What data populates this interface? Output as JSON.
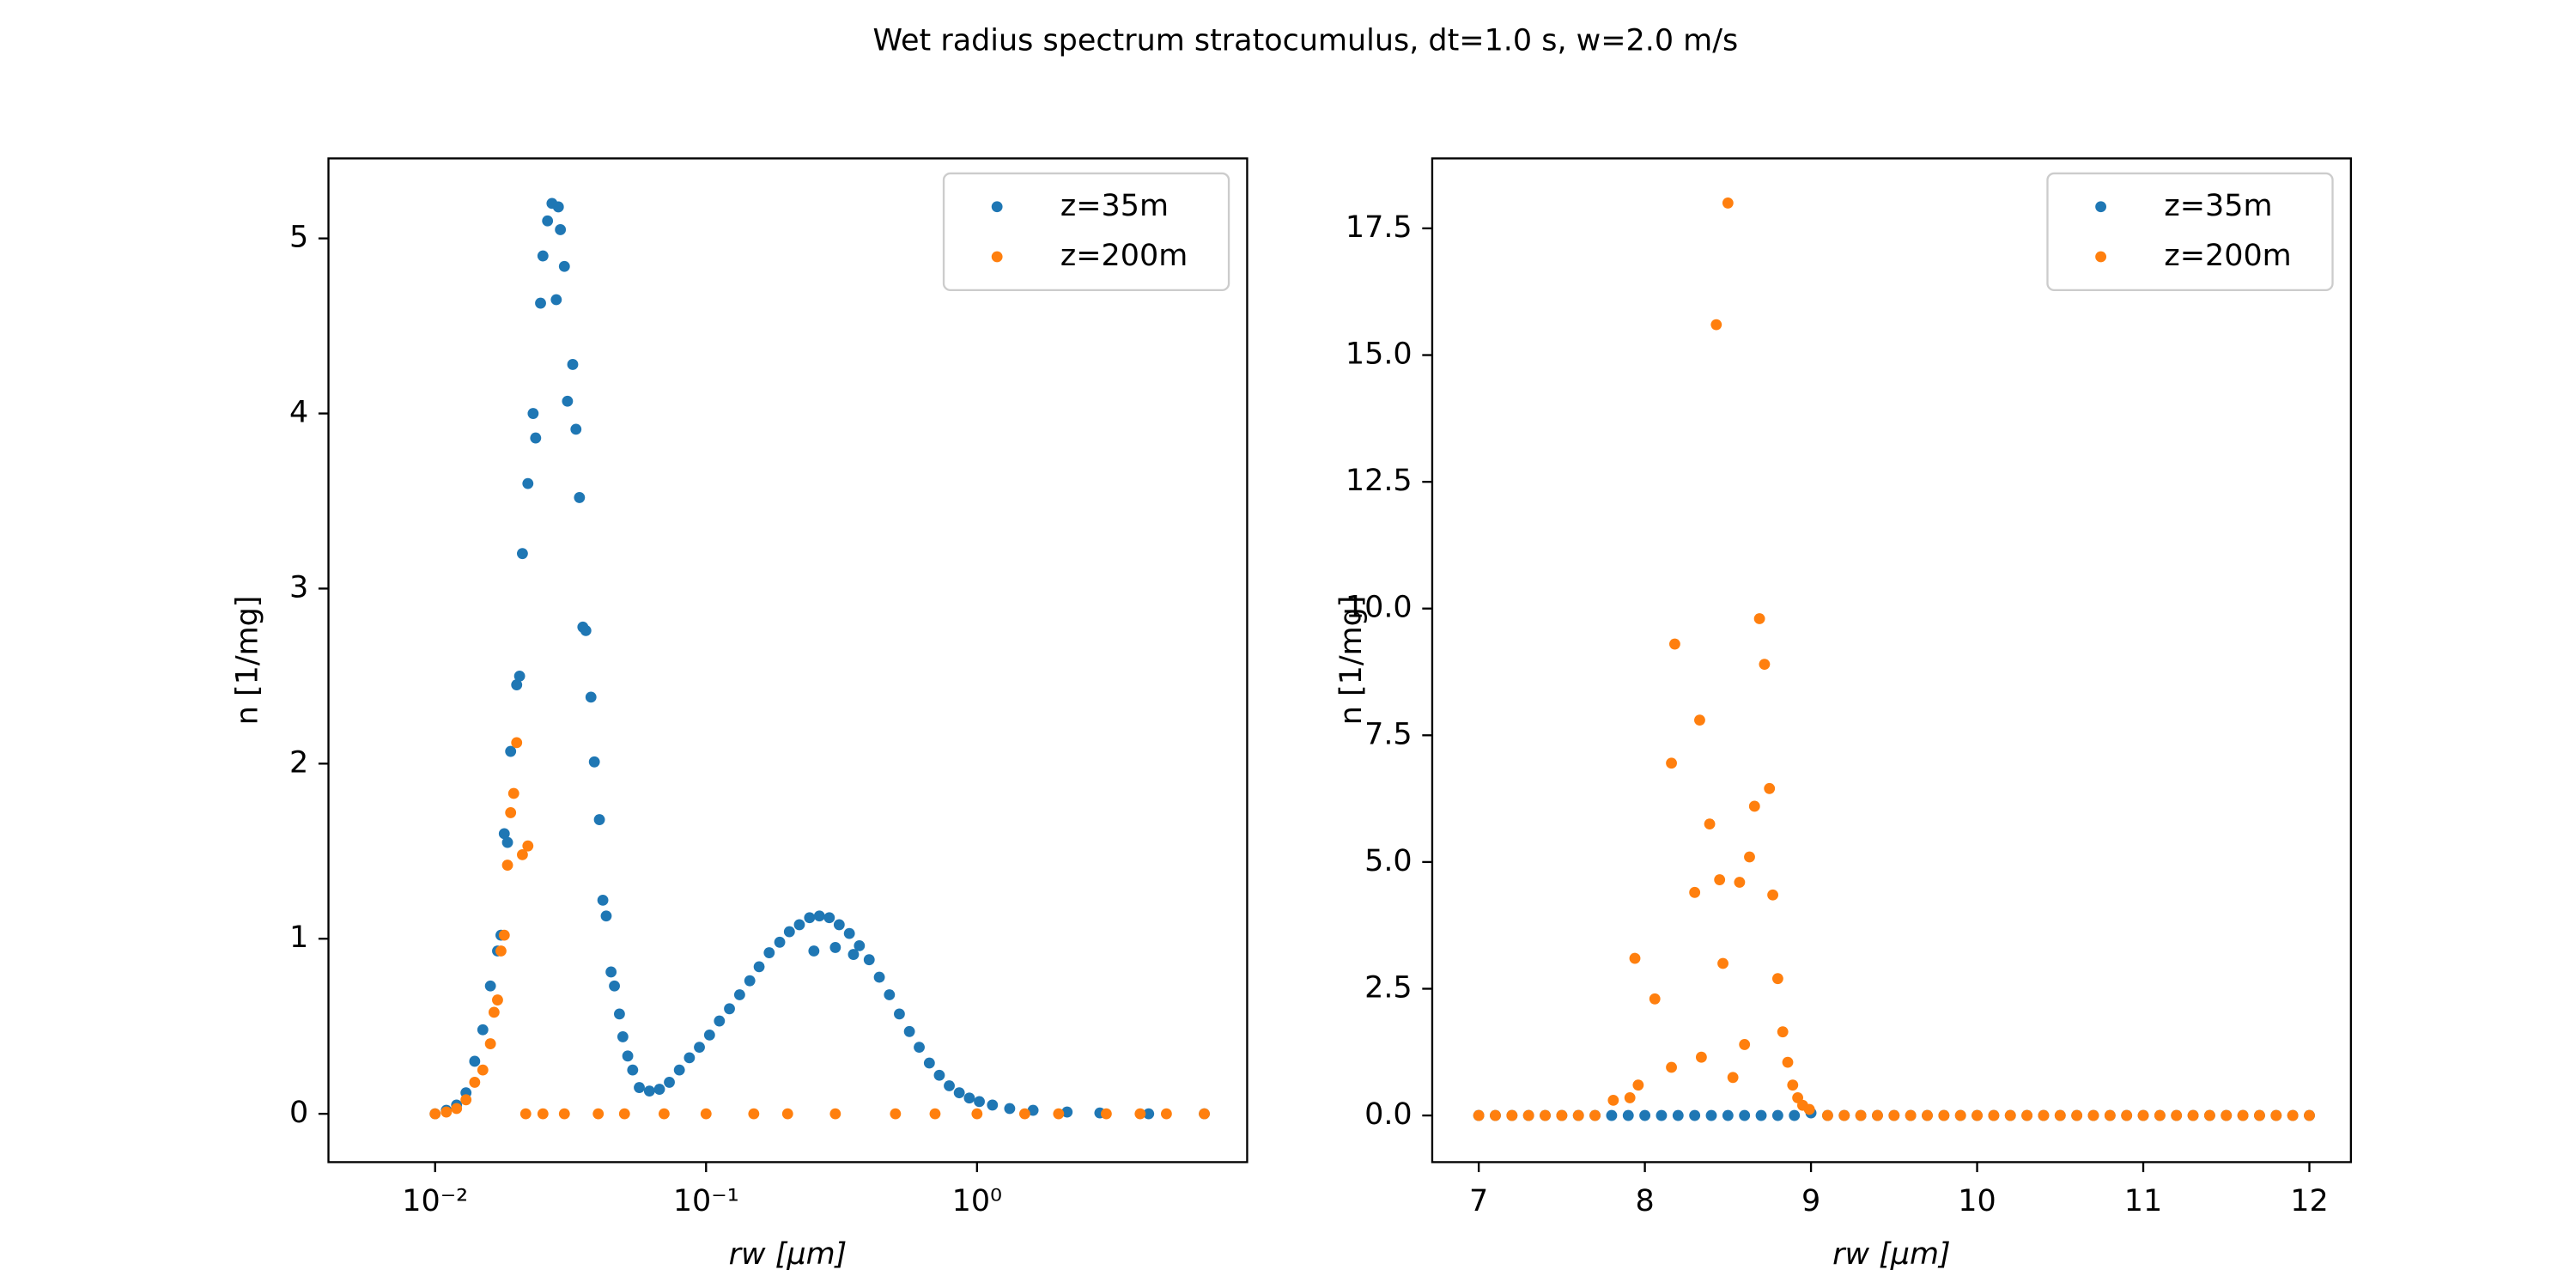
{
  "title": "Wet radius spectrum stratocumulus, dt=1.0 s, w=2.0 m/s",
  "chart_data": [
    {
      "type": "scatter",
      "xlabel": "rw [μm]",
      "ylabel": "n [1/mg]",
      "xscale": "log",
      "legend": "upper right",
      "xlim": [
        0.00404,
        9.93
      ],
      "ylim": [
        -0.276,
        5.457
      ],
      "xticks": [
        {
          "value": 0.01,
          "label": "10⁻²"
        },
        {
          "value": 0.1,
          "label": "10⁻¹"
        },
        {
          "value": 1,
          "label": "10⁰"
        }
      ],
      "yticks": [
        0,
        1,
        2,
        3,
        4,
        5
      ],
      "series": [
        {
          "name": "z=35m",
          "color": "#1f77b4",
          "x": [
            0.01,
            0.011,
            0.012,
            0.013,
            0.014,
            0.015,
            0.016,
            0.017,
            0.0175,
            0.018,
            0.0185,
            0.019,
            0.02,
            0.0205,
            0.021,
            0.022,
            0.023,
            0.0235,
            0.0245,
            0.025,
            0.026,
            0.027,
            0.028,
            0.0285,
            0.029,
            0.03,
            0.0308,
            0.0322,
            0.0331,
            0.0341,
            0.0351,
            0.036,
            0.0376,
            0.0387,
            0.0404,
            0.0416,
            0.0428,
            0.0446,
            0.0459,
            0.0479,
            0.0493,
            0.0514,
            0.0536,
            0.0567,
            0.0618,
            0.0673,
            0.0732,
            0.0797,
            0.0868,
            0.0945,
            0.103,
            0.112,
            0.122,
            0.133,
            0.145,
            0.157,
            0.171,
            0.187,
            0.203,
            0.221,
            0.241,
            0.262,
            0.285,
            0.31,
            0.338,
            0.368,
            0.4,
            0.436,
            0.475,
            0.517,
            0.563,
            0.612,
            0.667,
            0.726,
            0.79,
            0.86,
            0.937,
            1.02,
            1.14,
            1.32,
            1.61,
            2.15,
            2.84,
            4.3,
            6.9,
            0.25,
            0.3,
            0.35
          ],
          "values": [
            0,
            0.02,
            0.05,
            0.12,
            0.3,
            0.48,
            0.73,
            0.93,
            1.02,
            1.6,
            1.55,
            2.07,
            2.45,
            2.5,
            3.2,
            3.6,
            4.0,
            3.86,
            4.63,
            4.9,
            5.1,
            5.2,
            4.65,
            5.18,
            5.05,
            4.84,
            4.07,
            4.28,
            3.91,
            3.52,
            2.78,
            2.76,
            2.38,
            2.01,
            1.68,
            1.22,
            1.13,
            0.81,
            0.73,
            0.57,
            0.44,
            0.33,
            0.25,
            0.15,
            0.13,
            0.14,
            0.18,
            0.25,
            0.32,
            0.38,
            0.45,
            0.53,
            0.6,
            0.68,
            0.76,
            0.84,
            0.92,
            0.98,
            1.04,
            1.08,
            1.12,
            1.13,
            1.12,
            1.08,
            1.03,
            0.96,
            0.88,
            0.78,
            0.68,
            0.57,
            0.47,
            0.38,
            0.29,
            0.22,
            0.16,
            0.12,
            0.09,
            0.07,
            0.05,
            0.03,
            0.02,
            0.01,
            0.005,
            0,
            0,
            0.93,
            0.95,
            0.91
          ]
        },
        {
          "name": "z=200m",
          "color": "#ff7f0e",
          "x": [
            0.01,
            0.011,
            0.012,
            0.013,
            0.014,
            0.015,
            0.016,
            0.0165,
            0.017,
            0.0175,
            0.018,
            0.0185,
            0.019,
            0.0195,
            0.02,
            0.021,
            0.022,
            0.0216,
            0.025,
            0.03,
            0.04,
            0.05,
            0.07,
            0.1,
            0.15,
            0.2,
            0.3,
            0.5,
            0.7,
            1,
            1.5,
            2,
            3,
            4,
            5,
            6.9
          ],
          "values": [
            0,
            0.01,
            0.03,
            0.08,
            0.18,
            0.25,
            0.4,
            0.58,
            0.65,
            0.93,
            1.02,
            1.42,
            1.72,
            1.83,
            2.12,
            1.48,
            1.53,
            0,
            0,
            0,
            0,
            0,
            0,
            0,
            0,
            0,
            0,
            0,
            0,
            0,
            0,
            0,
            0,
            0,
            0,
            0
          ]
        }
      ]
    },
    {
      "type": "scatter",
      "xlabel": "rw [μm]",
      "ylabel": "n [1/mg]",
      "xscale": "linear",
      "legend": "upper right",
      "xlim": [
        6.72,
        12.25
      ],
      "ylim": [
        -0.92,
        18.88
      ],
      "xticks": [
        7,
        8,
        9,
        10,
        11,
        12
      ],
      "yticks": [
        {
          "value": 0,
          "label": "0.0"
        },
        2.5,
        {
          "value": 5,
          "label": "5.0"
        },
        7.5,
        {
          "value": 10,
          "label": "10.0"
        },
        12.5,
        {
          "value": 15,
          "label": "15.0"
        },
        17.5
      ],
      "series": [
        {
          "name": "z=35m",
          "color": "#1f77b4",
          "x": [
            7,
            7.1,
            7.2,
            7.3,
            7.4,
            7.5,
            7.6,
            7.7,
            7.8,
            7.9,
            8,
            8.1,
            8.2,
            8.3,
            8.4,
            8.5,
            8.6,
            8.7,
            8.8,
            8.9,
            9,
            9.1,
            9.2,
            9.3,
            9.4,
            9.5,
            9.6,
            9.7,
            9.8,
            9.9,
            10,
            10.1,
            10.2,
            10.3,
            10.4,
            10.5,
            10.6,
            10.7,
            10.8,
            10.9,
            11,
            11.1,
            11.2,
            11.3,
            11.4,
            11.5,
            11.6,
            11.7,
            11.8,
            11.9,
            12
          ],
          "values": [
            0,
            0,
            0,
            0,
            0,
            0,
            0,
            0,
            0,
            0,
            0,
            0,
            0,
            0,
            0,
            0,
            0,
            0,
            0,
            0,
            0.05,
            0,
            0,
            0,
            0,
            0,
            0,
            0,
            0,
            0,
            0,
            0,
            0,
            0,
            0,
            0,
            0,
            0,
            0,
            0,
            0,
            0,
            0,
            0,
            0,
            0,
            0,
            0,
            0,
            0,
            0
          ]
        },
        {
          "name": "z=200m",
          "color": "#ff7f0e",
          "x": [
            7.81,
            7.91,
            7.94,
            7.96,
            8.06,
            8.16,
            8.16,
            8.18,
            8.3,
            8.33,
            8.34,
            8.39,
            8.43,
            8.45,
            8.47,
            8.5,
            8.53,
            8.57,
            8.6,
            8.63,
            8.66,
            8.69,
            8.72,
            8.75,
            8.77,
            8.8,
            8.83,
            8.86,
            8.89,
            8.92,
            8.95,
            8.99,
            7,
            7.1,
            7.2,
            7.3,
            7.4,
            7.5,
            7.6,
            7.7,
            9.1,
            9.2,
            9.3,
            9.4,
            9.5,
            9.6,
            9.7,
            9.8,
            9.9,
            10,
            10.1,
            10.2,
            10.3,
            10.4,
            10.5,
            10.6,
            10.7,
            10.8,
            10.9,
            11,
            11.1,
            11.2,
            11.3,
            11.4,
            11.5,
            11.6,
            11.7,
            11.8,
            11.9,
            12
          ],
          "values": [
            0.3,
            0.35,
            3.1,
            0.6,
            2.3,
            0.95,
            6.95,
            9.3,
            4.4,
            7.8,
            1.15,
            5.75,
            15.6,
            4.65,
            3,
            18,
            0.75,
            4.6,
            1.4,
            5.1,
            6.1,
            9.8,
            8.9,
            6.45,
            4.35,
            2.7,
            1.65,
            1.05,
            0.6,
            0.35,
            0.2,
            0.12,
            0,
            0,
            0,
            0,
            0,
            0,
            0,
            0,
            0,
            0,
            0,
            0,
            0,
            0,
            0,
            0,
            0,
            0,
            0,
            0,
            0,
            0,
            0,
            0,
            0,
            0,
            0,
            0,
            0,
            0,
            0,
            0,
            0,
            0,
            0,
            0,
            0,
            0
          ]
        }
      ]
    }
  ]
}
